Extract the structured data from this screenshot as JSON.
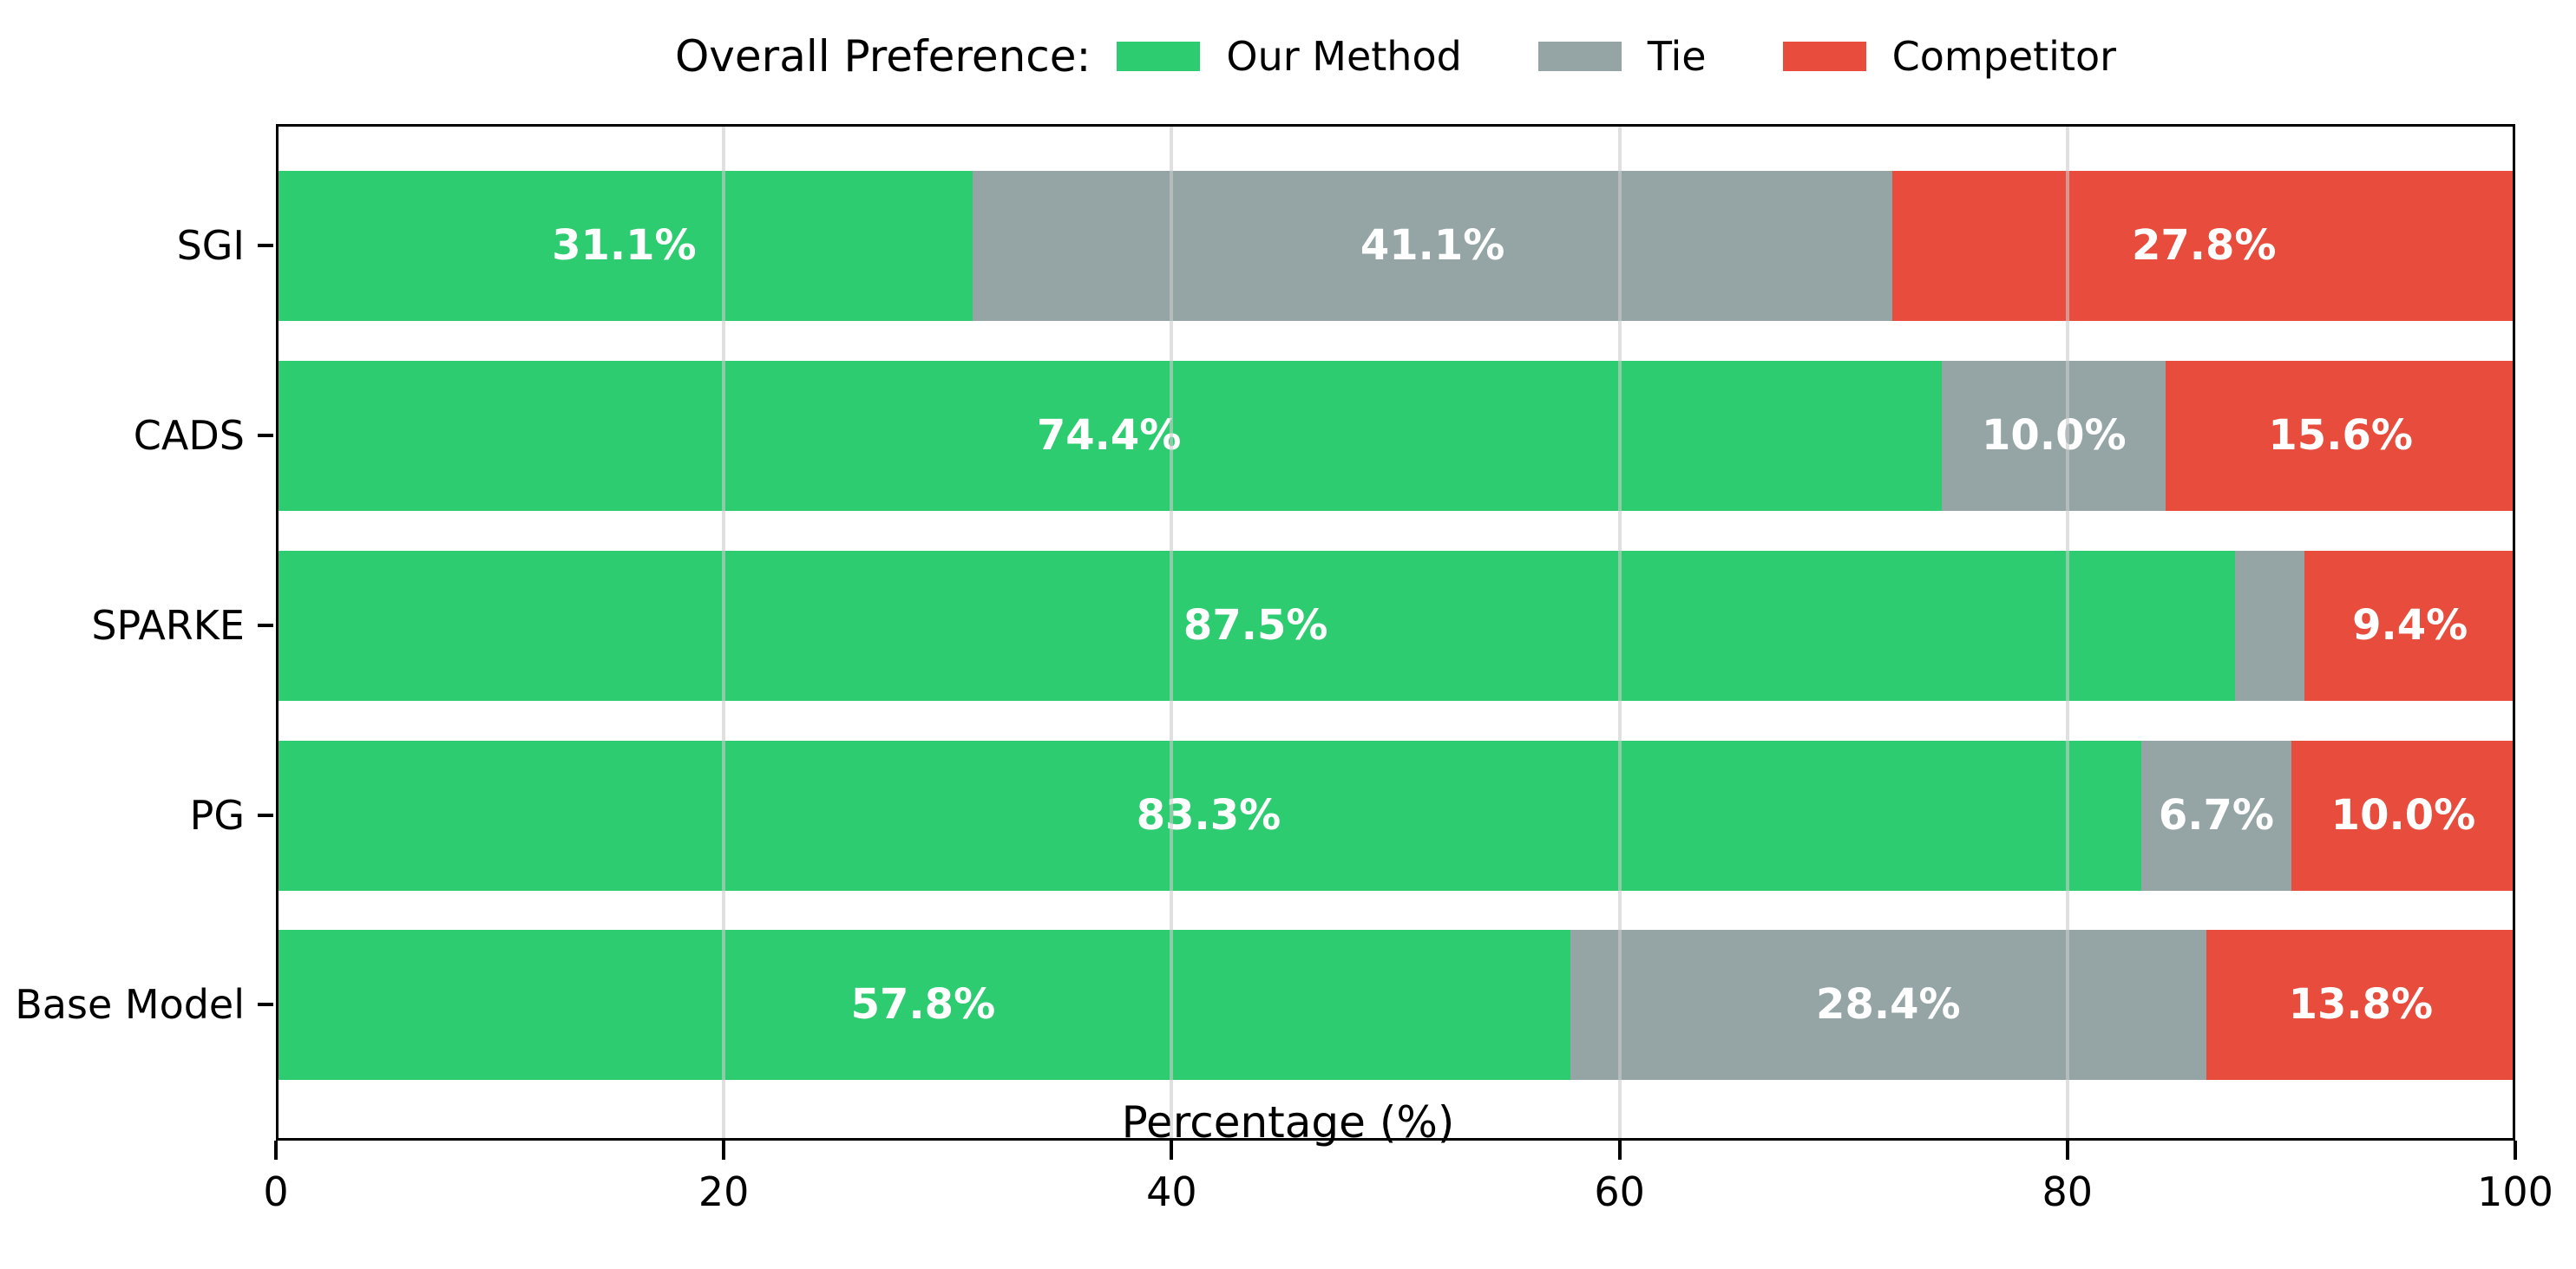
{
  "legend": {
    "title": "Overall Preference:",
    "items": [
      {
        "label": "Our Method",
        "color": "#2ecc71"
      },
      {
        "label": "Tie",
        "color": "#95a5a6"
      },
      {
        "label": "Competitor",
        "color": "#e74c3c"
      }
    ]
  },
  "chart_data": {
    "type": "bar",
    "orientation": "horizontal",
    "stacked": true,
    "title": "Overall Preference:",
    "xlabel": "Percentage (%)",
    "ylabel": "",
    "xlim": [
      0,
      100
    ],
    "x_ticks": [
      0,
      20,
      40,
      60,
      80,
      100
    ],
    "gridlines_x": [
      20,
      40,
      60,
      80
    ],
    "grid": "vertical",
    "legend_position": "top",
    "categories": [
      "SGI",
      "CADS",
      "SPARKE",
      "PG",
      "Base Model"
    ],
    "series": [
      {
        "name": "Our Method",
        "color": "#2ecc71",
        "values": [
          31.1,
          74.4,
          87.5,
          83.3,
          57.8
        ]
      },
      {
        "name": "Tie",
        "color": "#95a5a6",
        "values": [
          41.1,
          10.0,
          3.1,
          6.7,
          28.4
        ]
      },
      {
        "name": "Competitor",
        "color": "#e74c3c",
        "values": [
          27.8,
          15.6,
          9.4,
          10.0,
          13.8
        ]
      }
    ],
    "bar_labels": [
      [
        "31.1%",
        "41.1%",
        "27.8%"
      ],
      [
        "74.4%",
        "10.0%",
        "15.6%"
      ],
      [
        "87.5%",
        "",
        "9.4%"
      ],
      [
        "83.3%",
        "6.7%",
        "10.0%"
      ],
      [
        "57.8%",
        "28.4%",
        "13.8%"
      ]
    ]
  }
}
